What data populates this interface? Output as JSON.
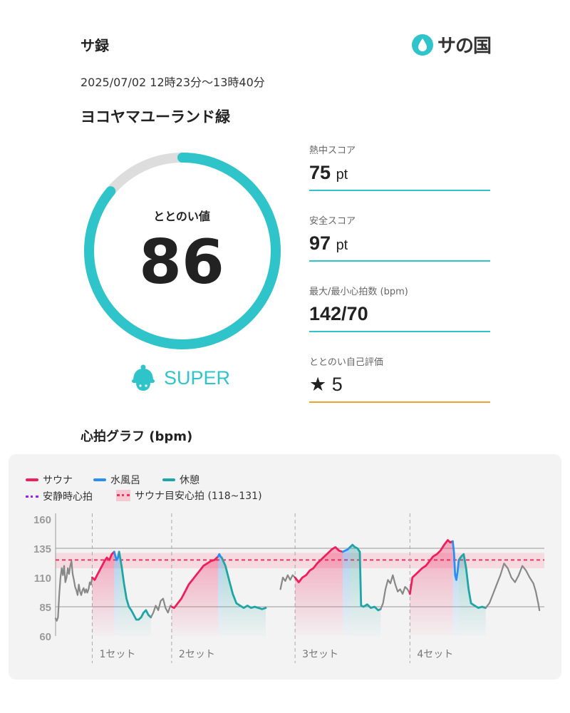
{
  "header": {
    "app_title": "サ録",
    "logo_text": "サの国"
  },
  "session": {
    "datetime": "2025/07/02 12時23分～13時40分",
    "facility": "ヨコヤマユーランド緑"
  },
  "gauge": {
    "label": "ととのい値",
    "value": "86",
    "fraction": 0.86,
    "color": "#2ec4c9",
    "track": "#dddddd"
  },
  "rank": {
    "text": "SUPER",
    "icon": "sauna-hat-icon"
  },
  "stats": [
    {
      "label": "熱中スコア",
      "value": "75",
      "unit": "pt"
    },
    {
      "label": "安全スコア",
      "value": "97",
      "unit": "pt"
    },
    {
      "label": "最大/最小心拍数 (bpm)",
      "value": "142/70",
      "unit": ""
    },
    {
      "label": "ととのい自己評価",
      "value": "5",
      "unit": "",
      "icon": "star-icon"
    }
  ],
  "chart_title": "心拍グラフ (bpm)",
  "legend": {
    "sauna": "サウナ",
    "water": "水風呂",
    "rest": "休憩",
    "resting_hr": "安静時心拍",
    "target": "サウナ目安心拍 (118~131)"
  },
  "colors": {
    "sauna": "#ee1f5c",
    "water": "#2a8ff0",
    "rest": "#1fa5a5",
    "other": "#888888",
    "resting": "#a020f0",
    "accent": "#2ec4c9"
  },
  "chart_data": {
    "type": "line",
    "ylim": [
      60,
      160
    ],
    "yticks": [
      160,
      135,
      110,
      85,
      60
    ],
    "reference_lines": [
      135,
      85
    ],
    "target_band": [
      118,
      131
    ],
    "target_line": 125,
    "set_labels": [
      "1セット",
      "2セット",
      "3セット",
      "4セット"
    ],
    "segments": [
      {
        "phase": "other",
        "points": [
          [
            0,
            75
          ],
          [
            1,
            73
          ],
          [
            2,
            76
          ],
          [
            3,
            95
          ],
          [
            4,
            110
          ],
          [
            5,
            118
          ],
          [
            6,
            112
          ],
          [
            7,
            120
          ],
          [
            8,
            106
          ],
          [
            9,
            110
          ],
          [
            10,
            118
          ],
          [
            11,
            113
          ],
          [
            12,
            120
          ],
          [
            13,
            124
          ],
          [
            14,
            113
          ],
          [
            15,
            108
          ],
          [
            16,
            102
          ],
          [
            17,
            99
          ],
          [
            18,
            95
          ],
          [
            19,
            104
          ],
          [
            20,
            98
          ],
          [
            21,
            95
          ],
          [
            22,
            99
          ],
          [
            23,
            101
          ],
          [
            24,
            97
          ],
          [
            25,
            100
          ],
          [
            26,
            97
          ],
          [
            27,
            100
          ],
          [
            28,
            106
          ],
          [
            29,
            104
          ],
          [
            30,
            110
          ]
        ]
      },
      {
        "phase": "sauna",
        "points": [
          [
            30,
            110
          ],
          [
            32,
            108
          ],
          [
            34,
            112
          ],
          [
            36,
            116
          ],
          [
            38,
            120
          ],
          [
            40,
            124
          ],
          [
            42,
            127
          ],
          [
            44,
            125
          ],
          [
            46,
            130
          ],
          [
            48,
            132
          ]
        ]
      },
      {
        "phase": "water",
        "points": [
          [
            48,
            132
          ],
          [
            49,
            128
          ],
          [
            50,
            125
          ],
          [
            51,
            127
          ],
          [
            52,
            132
          ]
        ]
      },
      {
        "phase": "rest",
        "points": [
          [
            52,
            132
          ],
          [
            54,
            120
          ],
          [
            56,
            105
          ],
          [
            58,
            92
          ],
          [
            60,
            85
          ],
          [
            62,
            82
          ],
          [
            64,
            78
          ],
          [
            66,
            74
          ],
          [
            68,
            74
          ],
          [
            70,
            76
          ],
          [
            72,
            80
          ],
          [
            74,
            82
          ],
          [
            76,
            78
          ],
          [
            78,
            76
          ]
        ]
      },
      {
        "phase": "other",
        "points": [
          [
            78,
            76
          ],
          [
            80,
            80
          ],
          [
            82,
            86
          ],
          [
            84,
            82
          ],
          [
            86,
            90
          ],
          [
            88,
            92
          ],
          [
            90,
            84
          ],
          [
            92,
            80
          ],
          [
            94,
            86
          ],
          [
            95,
            85
          ]
        ]
      },
      {
        "phase": "sauna",
        "points": [
          [
            95,
            85
          ],
          [
            97,
            84
          ],
          [
            100,
            88
          ],
          [
            103,
            92
          ],
          [
            106,
            98
          ],
          [
            109,
            104
          ],
          [
            112,
            108
          ],
          [
            115,
            112
          ],
          [
            118,
            116
          ],
          [
            121,
            120
          ],
          [
            124,
            122
          ],
          [
            127,
            124
          ],
          [
            130,
            125
          ],
          [
            133,
            128
          ]
        ]
      },
      {
        "phase": "water",
        "points": [
          [
            133,
            128
          ],
          [
            134,
            130
          ],
          [
            135,
            128
          ],
          [
            136,
            127
          ]
        ]
      },
      {
        "phase": "rest",
        "points": [
          [
            136,
            127
          ],
          [
            139,
            120
          ],
          [
            142,
            108
          ],
          [
            145,
            96
          ],
          [
            148,
            88
          ],
          [
            151,
            86
          ],
          [
            154,
            84
          ],
          [
            157,
            86
          ],
          [
            160,
            84
          ],
          [
            163,
            85
          ],
          [
            166,
            84
          ],
          [
            169,
            83
          ],
          [
            172,
            84
          ]
        ]
      },
      {
        "phase": "other",
        "points": [
          [
            184,
            100
          ],
          [
            186,
            110
          ],
          [
            188,
            107
          ],
          [
            190,
            112
          ],
          [
            192,
            108
          ],
          [
            194,
            112
          ],
          [
            196,
            110
          ]
        ]
      },
      {
        "phase": "sauna",
        "points": [
          [
            196,
            110
          ],
          [
            199,
            106
          ],
          [
            202,
            110
          ],
          [
            205,
            112
          ],
          [
            208,
            116
          ],
          [
            211,
            118
          ],
          [
            214,
            122
          ],
          [
            217,
            125
          ],
          [
            220,
            128
          ],
          [
            223,
            131
          ],
          [
            226,
            134
          ],
          [
            229,
            136
          ],
          [
            232,
            133
          ],
          [
            235,
            132
          ]
        ]
      },
      {
        "phase": "water",
        "points": [
          [
            235,
            132
          ],
          [
            237,
            133
          ],
          [
            239,
            134
          ],
          [
            241,
            136
          ]
        ]
      },
      {
        "phase": "rest",
        "points": [
          [
            241,
            136
          ],
          [
            243,
            138
          ],
          [
            245,
            136
          ],
          [
            247,
            135
          ],
          [
            249,
            132
          ],
          [
            250,
            86
          ],
          [
            252,
            85
          ],
          [
            255,
            87
          ],
          [
            258,
            84
          ],
          [
            261,
            85
          ],
          [
            264,
            82
          ],
          [
            266,
            83
          ]
        ]
      },
      {
        "phase": "other",
        "points": [
          [
            266,
            83
          ],
          [
            268,
            88
          ],
          [
            270,
            100
          ],
          [
            272,
            108
          ],
          [
            274,
            105
          ],
          [
            276,
            112
          ],
          [
            278,
            104
          ],
          [
            280,
            98
          ],
          [
            282,
            100
          ],
          [
            284,
            96
          ],
          [
            286,
            102
          ],
          [
            288,
            100
          ],
          [
            290,
            96
          ]
        ]
      },
      {
        "phase": "sauna",
        "points": [
          [
            290,
            96
          ],
          [
            292,
            110
          ],
          [
            294,
            112
          ],
          [
            297,
            115
          ],
          [
            300,
            118
          ],
          [
            303,
            120
          ],
          [
            306,
            124
          ],
          [
            309,
            128
          ],
          [
            312,
            130
          ],
          [
            315,
            133
          ],
          [
            318,
            138
          ],
          [
            321,
            142
          ],
          [
            323,
            140
          ],
          [
            325,
            141
          ]
        ]
      },
      {
        "phase": "water",
        "points": [
          [
            325,
            141
          ],
          [
            326,
            132
          ],
          [
            327,
            112
          ],
          [
            328,
            108
          ],
          [
            329,
            115
          ],
          [
            330,
            125
          ]
        ]
      },
      {
        "phase": "rest",
        "points": [
          [
            330,
            125
          ],
          [
            332,
            128
          ],
          [
            334,
            130
          ],
          [
            336,
            118
          ],
          [
            338,
            100
          ],
          [
            340,
            88
          ],
          [
            343,
            86
          ],
          [
            346,
            84
          ],
          [
            349,
            85
          ],
          [
            352,
            84
          ]
        ]
      },
      {
        "phase": "other",
        "points": [
          [
            352,
            84
          ],
          [
            355,
            88
          ],
          [
            358,
            96
          ],
          [
            361,
            104
          ],
          [
            364,
            112
          ],
          [
            367,
            122
          ],
          [
            370,
            118
          ],
          [
            373,
            110
          ],
          [
            376,
            106
          ],
          [
            379,
            112
          ],
          [
            382,
            120
          ],
          [
            385,
            116
          ],
          [
            388,
            110
          ],
          [
            391,
            105
          ],
          [
            393,
            98
          ],
          [
            395,
            88
          ],
          [
            396,
            82
          ]
        ]
      }
    ]
  }
}
